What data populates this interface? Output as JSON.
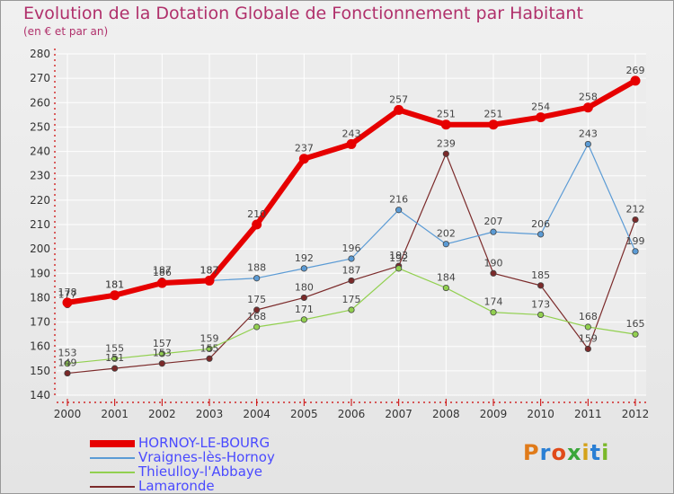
{
  "header": {
    "title": "Evolution de la Dotation Globale de Fonctionnement par Habitant",
    "subtitle": "(en € et par an)"
  },
  "logo": {
    "text": "Proxiti"
  },
  "colors": {
    "title": "#b0306b",
    "axis": "#cc0000",
    "grid": "#ffffff",
    "plot_bg": "#ececec"
  },
  "chart_data": {
    "type": "line",
    "title": "Evolution de la Dotation Globale de Fonctionnement par Habitant",
    "subtitle": "(en € et par an)",
    "xlabel": "",
    "ylabel": "",
    "x": [
      "2000",
      "2001",
      "2002",
      "2003",
      "2004",
      "2005",
      "2006",
      "2007",
      "2008",
      "2009",
      "2010",
      "2011",
      "2012"
    ],
    "ylim": [
      140,
      280
    ],
    "yticks": [
      140,
      150,
      160,
      170,
      180,
      190,
      200,
      210,
      220,
      230,
      240,
      250,
      260,
      270,
      280
    ],
    "grid": true,
    "legend_position": "bottom-left",
    "series": [
      {
        "name": "HORNOY-LE-BOURG",
        "color": "#e60000",
        "labelColor": "#4a4aff",
        "width": 6,
        "values": [
          178,
          181,
          186,
          187,
          210,
          237,
          243,
          257,
          251,
          251,
          254,
          258,
          269
        ]
      },
      {
        "name": "Vraignes-lès-Hornoy",
        "color": "#5b9bd5",
        "labelColor": "#4a4aff",
        "width": 1.2,
        "values": [
          177,
          181,
          187,
          187,
          188,
          192,
          196,
          216,
          202,
          207,
          206,
          243,
          199
        ]
      },
      {
        "name": "Thieulloy-l'Abbaye",
        "color": "#92d050",
        "labelColor": "#4a4aff",
        "width": 1.2,
        "values": [
          153,
          155,
          157,
          159,
          168,
          171,
          175,
          192,
          184,
          174,
          173,
          168,
          165
        ]
      },
      {
        "name": "Lamaronde",
        "color": "#7b2a2a",
        "labelColor": "#4a4aff",
        "width": 1.2,
        "values": [
          149,
          151,
          153,
          155,
          175,
          180,
          187,
          193,
          239,
          190,
          185,
          159,
          212
        ]
      }
    ]
  }
}
